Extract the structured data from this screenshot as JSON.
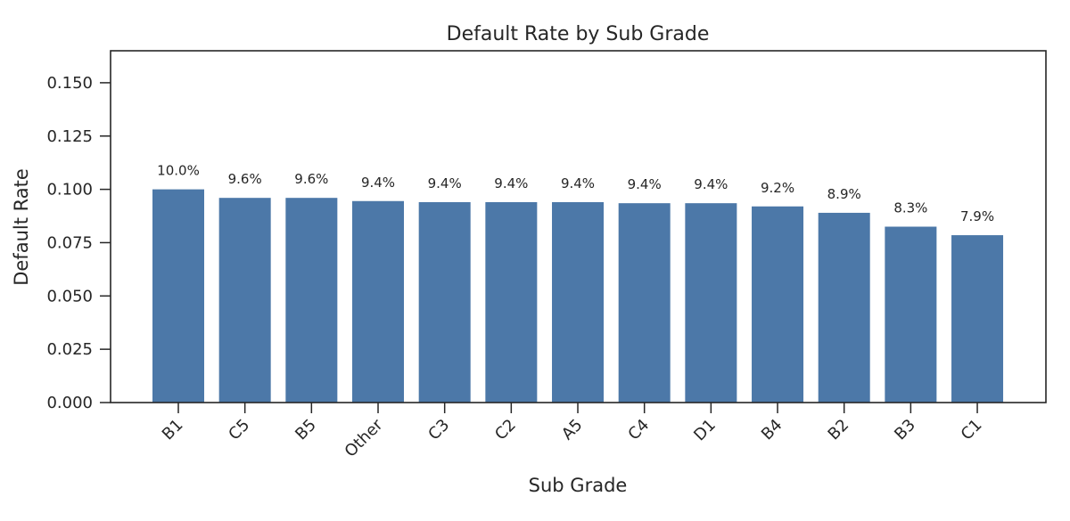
{
  "chart_data": {
    "type": "bar",
    "title": "Default Rate by Sub Grade",
    "xlabel": "Sub Grade",
    "ylabel": "Default Rate",
    "categories": [
      "B1",
      "C5",
      "B5",
      "Other",
      "C3",
      "C2",
      "A5",
      "C4",
      "D1",
      "B4",
      "B2",
      "B3",
      "C1"
    ],
    "values": [
      0.1,
      0.096,
      0.096,
      0.0945,
      0.094,
      0.094,
      0.094,
      0.0935,
      0.0935,
      0.092,
      0.089,
      0.0825,
      0.0785
    ],
    "data_labels": [
      "10.0%",
      "9.6%",
      "9.6%",
      "9.4%",
      "9.4%",
      "9.4%",
      "9.4%",
      "9.4%",
      "9.4%",
      "9.2%",
      "8.9%",
      "8.3%",
      "7.9%"
    ],
    "yticks": [
      "0.000",
      "0.025",
      "0.050",
      "0.075",
      "0.100",
      "0.125",
      "0.150"
    ],
    "ylim": [
      0,
      0.165
    ],
    "grid": false,
    "legend": "none",
    "bar_color": "#4c78a8"
  }
}
